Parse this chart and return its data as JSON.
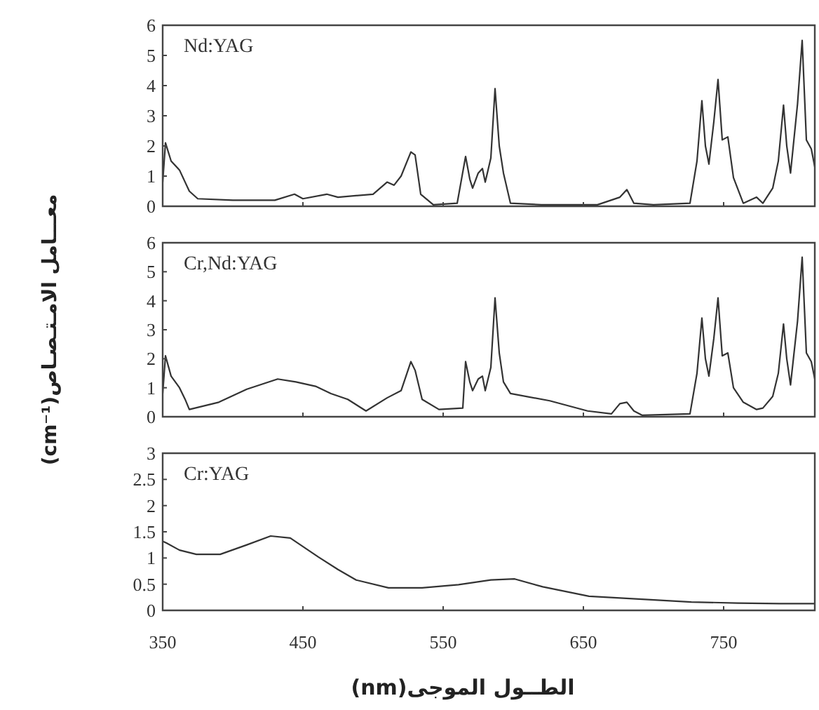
{
  "chart_data": [
    {
      "type": "line",
      "annotations": [
        "Nd:YAG"
      ],
      "xlim": [
        350,
        815
      ],
      "ylim": [
        0,
        6
      ],
      "xticks": [
        350,
        450,
        550,
        650,
        750
      ],
      "yticks": [
        0,
        1,
        2,
        3,
        4,
        5,
        6
      ],
      "tick_labels": "y",
      "series": [
        {
          "color": "#333333",
          "x": [
            350,
            352,
            356,
            362,
            366,
            369,
            375,
            400,
            430,
            444,
            450,
            467,
            475,
            500,
            510,
            515,
            520,
            527,
            530,
            534,
            543,
            560,
            566,
            569,
            571,
            575,
            578,
            580,
            584,
            587,
            590,
            593,
            598,
            620,
            660,
            676,
            681,
            686,
            700,
            726,
            731,
            734.5,
            737,
            739.5,
            743,
            746,
            749,
            753,
            757,
            764,
            773.5,
            778,
            785,
            789,
            792.7,
            795,
            797.7,
            802.7,
            806,
            809,
            812.5,
            815
          ],
          "values": [
            0.8,
            2.1,
            1.5,
            1.2,
            0.8,
            0.5,
            0.25,
            0.2,
            0.2,
            0.4,
            0.25,
            0.4,
            0.3,
            0.4,
            0.8,
            0.7,
            1.0,
            1.8,
            1.7,
            0.4,
            0.05,
            0.1,
            1.65,
            0.9,
            0.6,
            1.1,
            1.25,
            0.8,
            1.6,
            3.9,
            2.0,
            1.1,
            0.1,
            0.05,
            0.05,
            0.3,
            0.55,
            0.1,
            0.05,
            0.1,
            1.5,
            3.5,
            2.0,
            1.4,
            2.8,
            4.2,
            2.2,
            2.3,
            0.95,
            0.1,
            0.3,
            0.1,
            0.6,
            1.5,
            3.35,
            2.0,
            1.1,
            3.4,
            5.5,
            2.2,
            1.9,
            1.3
          ]
        }
      ]
    },
    {
      "type": "line",
      "annotations": [
        "Cr,Nd:YAG"
      ],
      "ylabel": "معـــامل الامـتـصـاص(cm⁻¹)",
      "xlim": [
        350,
        815
      ],
      "ylim": [
        0,
        6
      ],
      "xticks": [
        350,
        450,
        550,
        650,
        750
      ],
      "yticks": [
        0,
        1,
        2,
        3,
        4,
        5,
        6
      ],
      "tick_labels": "y",
      "series": [
        {
          "color": "#333333",
          "x": [
            350,
            352,
            356,
            362,
            366,
            369,
            390,
            410,
            432,
            445,
            459,
            470,
            482,
            495,
            510,
            520,
            527,
            530,
            535,
            547,
            564,
            566,
            569,
            571,
            575,
            578,
            580,
            584,
            587,
            590,
            593,
            598,
            626,
            653,
            670,
            676,
            681,
            686,
            692,
            726,
            731,
            734.5,
            737,
            739.5,
            743,
            746,
            749,
            753,
            757,
            764,
            773.5,
            778,
            785,
            789,
            792.7,
            795,
            797.7,
            802.7,
            806,
            809,
            812.5,
            815
          ],
          "values": [
            0.8,
            2.1,
            1.4,
            1.0,
            0.6,
            0.25,
            0.5,
            0.95,
            1.3,
            1.2,
            1.05,
            0.8,
            0.6,
            0.2,
            0.65,
            0.9,
            1.9,
            1.6,
            0.6,
            0.25,
            0.3,
            1.9,
            1.2,
            0.9,
            1.3,
            1.4,
            0.9,
            1.7,
            4.1,
            2.2,
            1.2,
            0.8,
            0.55,
            0.2,
            0.1,
            0.45,
            0.5,
            0.2,
            0.05,
            0.1,
            1.5,
            3.4,
            2.0,
            1.4,
            2.7,
            4.1,
            2.1,
            2.2,
            1.0,
            0.5,
            0.25,
            0.3,
            0.7,
            1.5,
            3.2,
            2.0,
            1.1,
            3.3,
            5.5,
            2.2,
            1.9,
            1.3
          ]
        }
      ]
    },
    {
      "type": "line",
      "annotations": [
        "Cr:YAG"
      ],
      "xlabel": "الطــول الموجى(nm)",
      "xlim": [
        350,
        815
      ],
      "ylim": [
        0,
        3
      ],
      "xticks": [
        350,
        450,
        550,
        650,
        750
      ],
      "yticks": [
        0,
        0.5,
        1,
        1.5,
        2,
        2.5,
        3
      ],
      "series": [
        {
          "color": "#333333",
          "x": [
            350,
            352.5,
            362,
            374,
            391,
            410,
            427,
            441,
            461,
            475,
            488,
            511,
            535,
            561,
            584,
            601,
            621,
            654,
            694,
            727,
            760,
            790,
            815
          ],
          "values": [
            1.32,
            1.29,
            1.15,
            1.07,
            1.07,
            1.25,
            1.42,
            1.38,
            1.02,
            0.78,
            0.58,
            0.43,
            0.43,
            0.49,
            0.58,
            0.6,
            0.45,
            0.27,
            0.21,
            0.16,
            0.14,
            0.13,
            0.13
          ]
        }
      ]
    }
  ]
}
